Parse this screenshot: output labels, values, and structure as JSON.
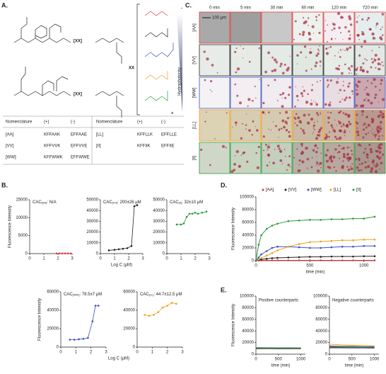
{
  "panels": {
    "a": "A.",
    "b": "B.",
    "c": "C.",
    "d": "D.",
    "e": "E."
  },
  "panel_a": {
    "linker": "[XX]",
    "xx": "XX",
    "gradient_label": "Hydrophobicity",
    "minus": "-",
    "plus": "+",
    "table": {
      "header": [
        "Nomenclature",
        "(+)",
        "(-)",
        "Nomenclature",
        "(+)",
        "(-)"
      ],
      "rows": [
        [
          "[AA]",
          "KFFAAK",
          "EFFAAE",
          "[LL]",
          "KFFLLK",
          "EFFLLE"
        ],
        [
          "[VV]",
          "KFFVVK",
          "EFFVVE",
          "[II]",
          "KFFIIK",
          "EFFIIE"
        ],
        [
          "[WW]",
          "KFFWWK",
          "EFFWWE"
        ]
      ]
    }
  },
  "panel_c": {
    "times": [
      "0 min",
      "5 min",
      "30 min",
      "60 min",
      "120 min",
      "720 min"
    ],
    "rows": [
      {
        "label": "[AA]",
        "color": "#e03a3a"
      },
      {
        "label": "[VV]",
        "color": "#222222"
      },
      {
        "label": "[WW]",
        "color": "#3a4fc0"
      },
      {
        "label": "[LL]",
        "color": "#f0a020"
      },
      {
        "label": "[II]",
        "color": "#2a9a3a"
      }
    ],
    "scale_bar": "100 μm"
  },
  "chart_data": [
    {
      "type": "scatter",
      "title": "CAC",
      "title_sub": "[AA]",
      "title_value": ": N/A",
      "color": "#e03a3a",
      "y_label": "Fluorescence Intensity",
      "x": [
        1.9,
        2.1,
        2.3,
        2.5,
        2.7,
        2.9
      ],
      "values": [
        50,
        50,
        50,
        50,
        50,
        50
      ],
      "xlim": [
        0,
        3
      ],
      "xticks": [
        0,
        1,
        2,
        3
      ],
      "ylim": [
        0,
        15000
      ],
      "yticks": [
        0,
        5000,
        10000,
        15000
      ]
    },
    {
      "type": "scatter",
      "title": "CAC",
      "title_sub": "[VV]",
      "title_value": ": 200±26 μM",
      "color": "#222222",
      "x_label": "Log C (μM)",
      "x": [
        0.6,
        1.0,
        1.3,
        1.6,
        1.9,
        2.2,
        2.4,
        2.6
      ],
      "values": [
        3000,
        3500,
        4000,
        4500,
        5000,
        7000,
        44000,
        45000
      ],
      "xlim": [
        0,
        3
      ],
      "xticks": [
        0,
        1,
        2,
        3
      ],
      "ylim": [
        0,
        50000
      ],
      "yticks": [
        0,
        10000,
        20000,
        30000,
        40000,
        50000
      ]
    },
    {
      "type": "scatter",
      "title": "CAC",
      "title_sub": "[II]",
      "title_value": ": 32±10 μM",
      "color": "#2a9a3a",
      "x": [
        0.7,
        1.0,
        1.2,
        1.4,
        1.6,
        1.8,
        2.0,
        2.2,
        2.5,
        2.8
      ],
      "values": [
        27000,
        27000,
        28000,
        34000,
        37000,
        37000,
        38000,
        37000,
        38000,
        39000
      ],
      "xlim": [
        0,
        3
      ],
      "xticks": [
        0,
        1,
        2,
        3
      ],
      "ylim": [
        0,
        50000
      ],
      "yticks": [
        0,
        10000,
        20000,
        30000,
        40000,
        50000
      ]
    },
    {
      "type": "scatter",
      "title": "CAC",
      "title_sub": "[WW]",
      "title_value": ": 78.5±7 μM",
      "color": "#3a4fc0",
      "y_label": "Fluorescence Intensity",
      "x_label": "Log C (μM)",
      "x": [
        0.6,
        0.9,
        1.2,
        1.5,
        1.8,
        2.1,
        2.3,
        2.5
      ],
      "values": [
        8000,
        8000,
        8500,
        9000,
        10000,
        28000,
        45000,
        45000
      ],
      "xlim": [
        0,
        3
      ],
      "xticks": [
        0,
        1,
        2,
        3
      ],
      "ylim": [
        0,
        60000
      ],
      "yticks": [
        0,
        20000,
        40000,
        60000
      ]
    },
    {
      "type": "scatter",
      "title": "CAC",
      "title_sub": "[LL]",
      "title_value": ": 44.7±12.5 μM",
      "color": "#f0a020",
      "x": [
        0.5,
        0.8,
        1.1,
        1.4,
        1.7,
        2.0,
        2.3,
        2.6
      ],
      "values": [
        35000,
        34000,
        35000,
        38000,
        43000,
        45000,
        48000,
        47000
      ],
      "xlim": [
        0,
        3
      ],
      "xticks": [
        0,
        1,
        2,
        3
      ],
      "ylim": [
        0,
        60000
      ],
      "yticks": [
        0,
        20000,
        40000,
        60000
      ]
    },
    {
      "type": "line",
      "legend": "top",
      "markers": true,
      "y_label": "Fluorescence Intensity",
      "x_label": "time (min)",
      "x": [
        0,
        25,
        50,
        100,
        150,
        200,
        300,
        400,
        500,
        600,
        700,
        800,
        900,
        1000,
        1100
      ],
      "series": [
        {
          "name": "[AA]",
          "color": "#e03a3a",
          "values": [
            500,
            500,
            500,
            500,
            500,
            500,
            500,
            500,
            500,
            500,
            500,
            500,
            500,
            500,
            500
          ]
        },
        {
          "name": "[VV]",
          "color": "#222222",
          "values": [
            0,
            1000,
            2000,
            3000,
            4000,
            4500,
            5000,
            5500,
            6000,
            6000,
            6500,
            6500,
            6500,
            7000,
            7000
          ]
        },
        {
          "name": "[WW]",
          "color": "#3a4fc0",
          "values": [
            0,
            5000,
            10000,
            15000,
            20000,
            22000,
            22000,
            21000,
            20000,
            20000,
            21000,
            22000,
            22000,
            23000,
            23000
          ]
        },
        {
          "name": "[LL]",
          "color": "#f0a020",
          "values": [
            0,
            2000,
            4000,
            8000,
            12000,
            16000,
            22000,
            26000,
            29000,
            30000,
            31000,
            32000,
            32000,
            33000,
            33000
          ]
        },
        {
          "name": "[II]",
          "color": "#2a9a3a",
          "values": [
            0,
            25000,
            40000,
            50000,
            55000,
            58000,
            62000,
            63000,
            64000,
            64000,
            65000,
            65000,
            66000,
            66000,
            69000
          ]
        }
      ],
      "xlim": [
        0,
        1100
      ],
      "xticks": [
        0,
        500,
        1000
      ],
      "ylim": [
        0,
        100000
      ],
      "yticks": [
        0,
        20000,
        40000,
        60000,
        80000,
        100000
      ]
    },
    {
      "type": "line",
      "title": "Positive counterparts",
      "y_label": "Fluorescence Intensity",
      "x_label": "time (min)",
      "x": [
        0,
        250,
        500,
        750,
        1000
      ],
      "series": [
        {
          "color": "#e03a3a",
          "values": [
            10000,
            10000,
            9800,
            10000,
            10000
          ]
        },
        {
          "color": "#222222",
          "values": [
            9500,
            9600,
            9500,
            9400,
            9500
          ]
        },
        {
          "color": "#3a4fc0",
          "values": [
            10500,
            10400,
            10500,
            10400,
            10300
          ]
        },
        {
          "color": "#f0a020",
          "values": [
            11000,
            11000,
            10800,
            10800,
            10700
          ]
        },
        {
          "color": "#2a9a3a",
          "values": [
            11500,
            11200,
            11000,
            11200,
            11000
          ]
        }
      ],
      "xlim": [
        0,
        1100
      ],
      "xticks": [
        0,
        500,
        1000
      ],
      "ylim": [
        0,
        100000
      ],
      "yticks": [
        0,
        20000,
        40000,
        60000,
        80000,
        100000
      ]
    },
    {
      "type": "line",
      "title": "Negative counterparts",
      "x_label": "time (min)",
      "x": [
        0,
        250,
        500,
        750,
        1000
      ],
      "series": [
        {
          "color": "#e03a3a",
          "values": [
            13000,
            12500,
            12500,
            12000,
            12000
          ]
        },
        {
          "color": "#222222",
          "values": [
            11000,
            11000,
            10800,
            10800,
            10500
          ]
        },
        {
          "color": "#3a4fc0",
          "values": [
            14000,
            13500,
            13500,
            13000,
            13000
          ]
        },
        {
          "color": "#f0a020",
          "values": [
            17000,
            16000,
            15500,
            15000,
            14500
          ]
        },
        {
          "color": "#2a9a3a",
          "values": [
            12000,
            12000,
            11800,
            11500,
            11500
          ]
        }
      ],
      "xlim": [
        0,
        1100
      ],
      "xticks": [
        0,
        500,
        1000
      ],
      "ylim": [
        0,
        100000
      ],
      "yticks": [
        0,
        20000,
        40000,
        60000,
        80000,
        100000
      ]
    }
  ]
}
